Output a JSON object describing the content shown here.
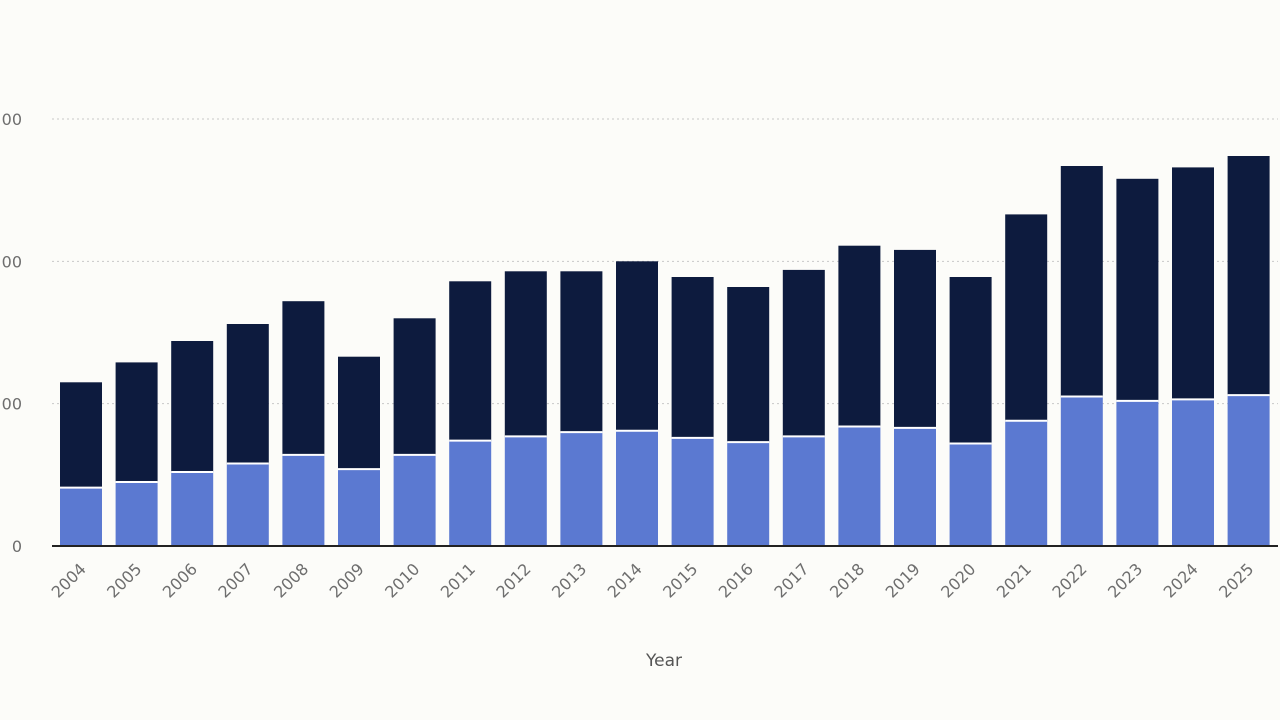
{
  "chart_data": {
    "type": "bar",
    "stacked": true,
    "xlabel": "Year",
    "ylabel": "",
    "categories": [
      "2004",
      "2005",
      "2006",
      "2007",
      "2008",
      "2009",
      "2010",
      "2011",
      "2012",
      "2013",
      "2014",
      "2015",
      "2016",
      "2017",
      "2018",
      "2019",
      "2020",
      "2021",
      "2022",
      "2023",
      "2024",
      "2025"
    ],
    "series": [
      {
        "color": "#5b79d1",
        "values": [
          41,
          45,
          52,
          58,
          64,
          54,
          64,
          74,
          77,
          80,
          81,
          76,
          73,
          77,
          84,
          83,
          72,
          88,
          105,
          102,
          103,
          106
        ]
      },
      {
        "color": "#0d1b3e",
        "values": [
          74,
          84,
          92,
          98,
          108,
          79,
          96,
          112,
          116,
          113,
          119,
          113,
          109,
          117,
          127,
          125,
          117,
          145,
          162,
          156,
          163,
          168
        ]
      }
    ],
    "ylim": [
      0,
      300
    ],
    "yticks": [
      {
        "value": 0,
        "label": "0"
      },
      {
        "value": 100,
        "label": "00"
      },
      {
        "value": 200,
        "label": "00"
      },
      {
        "value": 300,
        "label": "00"
      }
    ],
    "grid": true,
    "grid_style": "dotted horizontal"
  }
}
